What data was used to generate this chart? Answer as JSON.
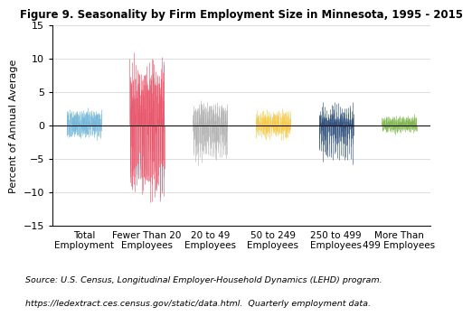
{
  "title": "Figure 9. Seasonality by Firm Employment Size in Minnesota, 1995 - 2015",
  "ylabel": "Percent of Annual Average",
  "source_line1": "Source: U.S. Census, Longitudinal Employer-Household Dynamics (LEHD) program.",
  "source_line2": "https://ledextract.ces.census.gov/static/data.html.  Quarterly employment data.",
  "ylim": [
    -15,
    15
  ],
  "yticks": [
    -15,
    -10,
    -5,
    0,
    5,
    10,
    15
  ],
  "categories": [
    "Total\nEmployment",
    "Fewer Than 20\nEmployees",
    "20 to 49\nEmployees",
    "50 to 249\nEmployees",
    "250 to 499\nEmployees",
    "More Than\n499 Employees"
  ],
  "colors": [
    "#6cb4d8",
    "#e8546a",
    "#b0b0b0",
    "#f5c842",
    "#2e4f7a",
    "#7ab648"
  ],
  "n_years": 21,
  "n_months": 12,
  "noise_scales": [
    0.35,
    1.6,
    0.6,
    0.35,
    0.55,
    0.22
  ],
  "group_width": 0.55,
  "seasonal_patterns": [
    [
      2.0,
      1.6,
      0.2,
      -0.8,
      -1.5,
      -1.5,
      0.2,
      1.2,
      1.8,
      1.5,
      0.3,
      -1.2
    ],
    [
      6.5,
      5.0,
      -3.5,
      -7.0,
      -9.0,
      -7.5,
      2.0,
      6.0,
      7.5,
      6.5,
      2.0,
      -7.5
    ],
    [
      2.0,
      1.0,
      -0.5,
      -2.0,
      -4.5,
      -3.5,
      0.5,
      2.0,
      3.0,
      2.5,
      0.5,
      -2.5
    ],
    [
      1.5,
      0.8,
      -0.3,
      -1.0,
      -1.8,
      -1.0,
      0.3,
      1.2,
      1.8,
      1.0,
      -0.2,
      -1.0
    ],
    [
      1.0,
      0.5,
      -0.5,
      -2.0,
      -4.8,
      -3.0,
      0.5,
      1.5,
      2.5,
      1.5,
      0.5,
      -1.5
    ],
    [
      1.0,
      0.5,
      -0.2,
      -0.5,
      -0.8,
      -0.5,
      0.2,
      0.8,
      1.2,
      0.8,
      0.0,
      -0.8
    ]
  ]
}
